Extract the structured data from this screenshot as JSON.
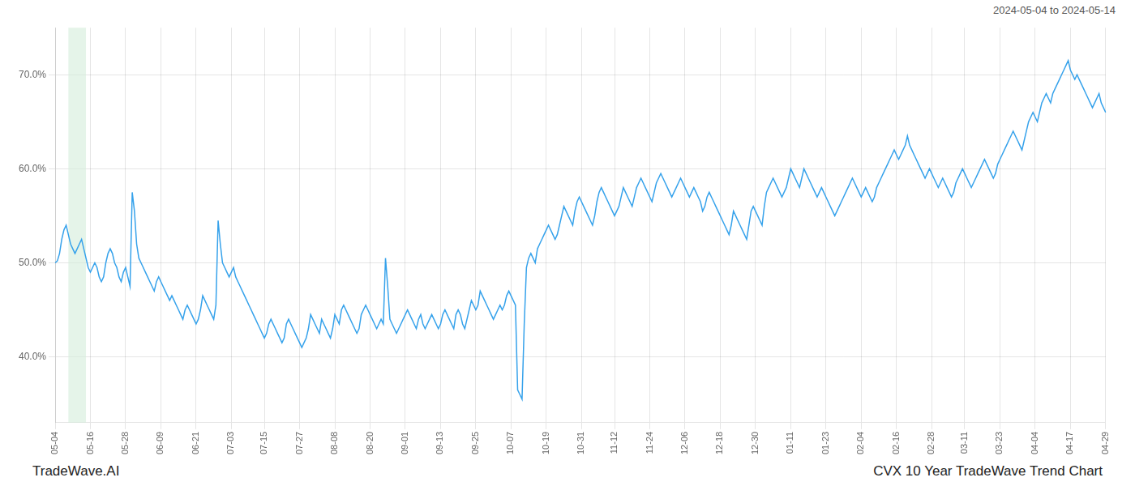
{
  "chart_data": {
    "type": "line",
    "title": "CVX 10 Year TradeWave Trend Chart",
    "subtitle": "2024-05-04 to 2024-05-14",
    "annotations": [
      "TradeWave.AI"
    ],
    "categories": [
      "05-04",
      null,
      null,
      null,
      null,
      null,
      null,
      null,
      null,
      null,
      null,
      null,
      null,
      null,
      null,
      null,
      "05-16",
      null,
      null,
      null,
      null,
      null,
      null,
      null,
      null,
      null,
      null,
      null,
      null,
      null,
      null,
      null,
      "05-28",
      null,
      null,
      null,
      null,
      null,
      null,
      null,
      null,
      null,
      null,
      null,
      null,
      null,
      null,
      null,
      "06-09",
      null,
      null,
      null,
      null,
      null,
      null,
      null,
      null,
      null,
      null,
      null,
      null,
      null,
      null,
      null,
      "06-21",
      null,
      null,
      null,
      null,
      null,
      null,
      null,
      null,
      null,
      null,
      null,
      null,
      null,
      null,
      null,
      "07-03",
      null,
      null,
      null,
      null,
      null,
      null,
      null,
      null,
      null,
      null,
      null,
      null,
      null,
      null,
      "07-15",
      null,
      null,
      null,
      null,
      null,
      null,
      null,
      null,
      null,
      null,
      null,
      null,
      null,
      null,
      null,
      "07-27",
      null,
      null,
      null,
      null,
      null,
      null,
      null,
      null,
      null,
      null,
      null,
      null,
      null,
      null,
      null,
      "08-08",
      null,
      null,
      null,
      null,
      null,
      null,
      null,
      null,
      null,
      null,
      null,
      null,
      null,
      null,
      null,
      "08-20",
      null,
      null,
      null,
      null,
      null,
      null,
      null,
      null,
      null,
      null,
      null,
      null,
      null,
      null,
      null,
      "09-01",
      null,
      null,
      null,
      null,
      null,
      null,
      null,
      null,
      null,
      null,
      null,
      null,
      null,
      null,
      null,
      "09-13",
      null,
      null,
      null,
      null,
      null,
      null,
      null,
      null,
      null,
      null,
      null,
      null,
      null,
      null,
      null,
      "09-25",
      null,
      null,
      null,
      null,
      null,
      null,
      null,
      null,
      null,
      null,
      null,
      null,
      null,
      null,
      null,
      "10-07",
      null,
      null,
      null,
      null,
      null,
      null,
      null,
      null,
      null,
      null,
      null,
      null,
      null,
      null,
      null,
      "10-19",
      null,
      null,
      null,
      null,
      null,
      null,
      null,
      null,
      null,
      null,
      null,
      null,
      null,
      null,
      null,
      "10-31",
      null,
      null,
      null,
      null,
      null,
      null,
      null,
      null,
      null,
      null,
      null,
      null,
      null,
      null,
      "11-12",
      null,
      null,
      null,
      null,
      null,
      null,
      null,
      null,
      null,
      null,
      null,
      null,
      null,
      null,
      null,
      "11-24",
      null,
      null,
      null,
      null,
      null,
      null,
      null,
      null,
      null,
      null,
      null,
      null,
      null,
      null,
      null,
      "12-06",
      null,
      null,
      null,
      null,
      null,
      null,
      null,
      null,
      null,
      null,
      null,
      null,
      null,
      null,
      null,
      "12-18",
      null,
      null,
      null,
      null,
      null,
      null,
      null,
      null,
      null,
      null,
      null,
      null,
      null,
      null,
      null,
      "12-30",
      null,
      null,
      null,
      null,
      null,
      null,
      null,
      null,
      null,
      null,
      null,
      null,
      null,
      null,
      null,
      "01-11",
      null,
      null,
      null,
      null,
      null,
      null,
      null,
      null,
      null,
      null,
      null,
      null,
      null,
      null,
      null,
      "01-23",
      null,
      null,
      null,
      null,
      null,
      null,
      null,
      null,
      null,
      null,
      null,
      null,
      null,
      null,
      null,
      "02-04",
      null,
      null,
      null,
      null,
      null,
      null,
      null,
      null,
      null,
      null,
      null,
      null,
      null,
      null,
      null,
      "02-16",
      null,
      null,
      null,
      null,
      null,
      null,
      null,
      null,
      null,
      null,
      null,
      null,
      null,
      null,
      null,
      "02-28",
      null,
      null,
      null,
      null,
      null,
      null,
      null,
      null,
      null,
      null,
      null,
      null,
      null,
      null,
      "03-11",
      null,
      null,
      null,
      null,
      null,
      null,
      null,
      null,
      null,
      null,
      null,
      null,
      null,
      null,
      null,
      "03-23",
      null,
      null,
      null,
      null,
      null,
      null,
      null,
      null,
      null,
      null,
      null,
      null,
      null,
      null,
      null,
      "04-04",
      null,
      null,
      null,
      null,
      null,
      null,
      null,
      null,
      null,
      null,
      null,
      null,
      null,
      null,
      null,
      "04-17",
      null,
      null,
      null,
      null,
      null,
      null,
      null,
      null,
      null,
      null,
      null,
      null,
      null,
      null,
      null,
      "04-29"
    ],
    "values": [
      50.0,
      50.2,
      51.0,
      52.5,
      53.5,
      54.0,
      53.0,
      52.0,
      51.5,
      51.0,
      51.5,
      52.0,
      52.5,
      51.5,
      50.5,
      49.5,
      49.0,
      49.5,
      50.0,
      49.5,
      48.5,
      48.0,
      48.5,
      50.0,
      51.0,
      51.5,
      51.0,
      50.0,
      49.5,
      48.5,
      48.0,
      49.0,
      49.5,
      48.5,
      47.5,
      57.5,
      55.5,
      52.0,
      50.5,
      50.0,
      49.5,
      49.0,
      48.5,
      48.0,
      47.5,
      47.0,
      48.0,
      48.5,
      48.0,
      47.5,
      47.0,
      46.5,
      46.0,
      46.5,
      46.0,
      45.5,
      45.0,
      44.5,
      44.0,
      45.0,
      45.5,
      45.0,
      44.5,
      44.0,
      43.5,
      44.0,
      45.0,
      46.5,
      46.0,
      45.5,
      45.0,
      44.5,
      44.0,
      45.5,
      54.5,
      52.0,
      50.0,
      49.5,
      49.0,
      48.5,
      49.0,
      49.5,
      48.5,
      48.0,
      47.5,
      47.0,
      46.5,
      46.0,
      45.5,
      45.0,
      44.5,
      44.0,
      43.5,
      43.0,
      42.5,
      42.0,
      42.5,
      43.5,
      44.0,
      43.5,
      43.0,
      42.5,
      42.0,
      41.5,
      42.0,
      43.5,
      44.0,
      43.5,
      43.0,
      42.5,
      42.0,
      41.5,
      41.0,
      41.5,
      42.0,
      43.0,
      44.5,
      44.0,
      43.5,
      43.0,
      42.5,
      44.0,
      43.5,
      43.0,
      42.5,
      42.0,
      43.0,
      44.5,
      44.0,
      43.5,
      45.0,
      45.5,
      45.0,
      44.5,
      44.0,
      43.5,
      43.0,
      42.5,
      43.0,
      44.5,
      45.0,
      45.5,
      45.0,
      44.5,
      44.0,
      43.5,
      43.0,
      43.5,
      44.0,
      43.5,
      50.5,
      47.5,
      44.0,
      43.5,
      43.0,
      42.5,
      43.0,
      43.5,
      44.0,
      44.5,
      45.0,
      44.5,
      44.0,
      43.5,
      43.0,
      44.0,
      44.5,
      43.5,
      43.0,
      43.5,
      44.0,
      44.5,
      44.0,
      43.5,
      43.0,
      43.5,
      44.5,
      45.0,
      44.5,
      44.0,
      43.5,
      43.0,
      44.5,
      45.0,
      44.5,
      43.5,
      43.0,
      44.0,
      45.0,
      46.0,
      45.5,
      45.0,
      45.5,
      47.0,
      46.5,
      46.0,
      45.5,
      45.0,
      44.5,
      44.0,
      44.5,
      45.0,
      45.5,
      45.0,
      45.5,
      46.5,
      47.0,
      46.5,
      46.0,
      45.5,
      36.5,
      36.0,
      35.5,
      43.5,
      49.5,
      50.5,
      51.0,
      50.5,
      50.0,
      51.5,
      52.0,
      52.5,
      53.0,
      53.5,
      54.0,
      53.5,
      53.0,
      52.5,
      53.0,
      54.0,
      55.0,
      56.0,
      55.5,
      55.0,
      54.5,
      54.0,
      55.5,
      56.5,
      57.0,
      56.5,
      56.0,
      55.5,
      55.0,
      54.5,
      54.0,
      55.0,
      56.5,
      57.5,
      58.0,
      57.5,
      57.0,
      56.5,
      56.0,
      55.5,
      55.0,
      55.5,
      56.0,
      57.0,
      58.0,
      57.5,
      57.0,
      56.5,
      56.0,
      57.0,
      58.0,
      58.5,
      59.0,
      58.5,
      58.0,
      57.5,
      57.0,
      56.5,
      57.5,
      58.5,
      59.0,
      59.5,
      59.0,
      58.5,
      58.0,
      57.5,
      57.0,
      57.5,
      58.0,
      58.5,
      59.0,
      58.5,
      58.0,
      57.5,
      57.0,
      57.5,
      58.0,
      57.5,
      57.0,
      56.5,
      55.5,
      56.0,
      57.0,
      57.5,
      57.0,
      56.5,
      56.0,
      55.5,
      55.0,
      54.5,
      54.0,
      53.5,
      53.0,
      54.0,
      55.5,
      55.0,
      54.5,
      54.0,
      53.5,
      53.0,
      52.5,
      54.0,
      55.5,
      56.0,
      55.5,
      55.0,
      54.5,
      54.0,
      56.0,
      57.5,
      58.0,
      58.5,
      59.0,
      58.5,
      58.0,
      57.5,
      57.0,
      57.5,
      58.0,
      59.0,
      60.0,
      59.5,
      59.0,
      58.5,
      58.0,
      59.0,
      60.0,
      59.5,
      59.0,
      58.5,
      58.0,
      57.5,
      57.0,
      57.5,
      58.0,
      57.5,
      57.0,
      56.5,
      56.0,
      55.5,
      55.0,
      55.5,
      56.0,
      56.5,
      57.0,
      57.5,
      58.0,
      58.5,
      59.0,
      58.5,
      58.0,
      57.5,
      57.0,
      57.5,
      58.0,
      57.5,
      57.0,
      56.5,
      57.0,
      58.0,
      58.5,
      59.0,
      59.5,
      60.0,
      60.5,
      61.0,
      61.5,
      62.0,
      61.5,
      61.0,
      61.5,
      62.0,
      62.5,
      63.5,
      62.5,
      62.0,
      61.5,
      61.0,
      60.5,
      60.0,
      59.5,
      59.0,
      59.5,
      60.0,
      59.5,
      59.0,
      58.5,
      58.0,
      58.5,
      59.0,
      58.5,
      58.0,
      57.5,
      57.0,
      57.5,
      58.5,
      59.0,
      59.5,
      60.0,
      59.5,
      59.0,
      58.5,
      58.0,
      58.5,
      59.0,
      59.5,
      60.0,
      60.5,
      61.0,
      60.5,
      60.0,
      59.5,
      59.0,
      59.5,
      60.5,
      61.0,
      61.5,
      62.0,
      62.5,
      63.0,
      63.5,
      64.0,
      63.5,
      63.0,
      62.5,
      62.0,
      63.0,
      64.0,
      65.0,
      65.5,
      66.0,
      65.5,
      65.0,
      66.0,
      67.0,
      67.5,
      68.0,
      67.5,
      67.0,
      68.0,
      68.5,
      69.0,
      69.5,
      70.0,
      70.5,
      71.0,
      71.5,
      70.5,
      70.0,
      69.5,
      70.0,
      69.5,
      69.0,
      68.5,
      68.0,
      67.5,
      67.0,
      66.5,
      67.0,
      67.5,
      68.0,
      67.0,
      66.5,
      66.0
    ],
    "ylim": [
      33,
      75
    ],
    "yticks": [
      {
        "value": 40,
        "label": "40.0%"
      },
      {
        "value": 50,
        "label": "50.0%"
      },
      {
        "value": 60,
        "label": "60.0%"
      },
      {
        "value": 70,
        "label": "70.0%"
      }
    ],
    "grid": true,
    "highlight": {
      "start": 6,
      "end": 14,
      "color": "#d4edda"
    }
  }
}
